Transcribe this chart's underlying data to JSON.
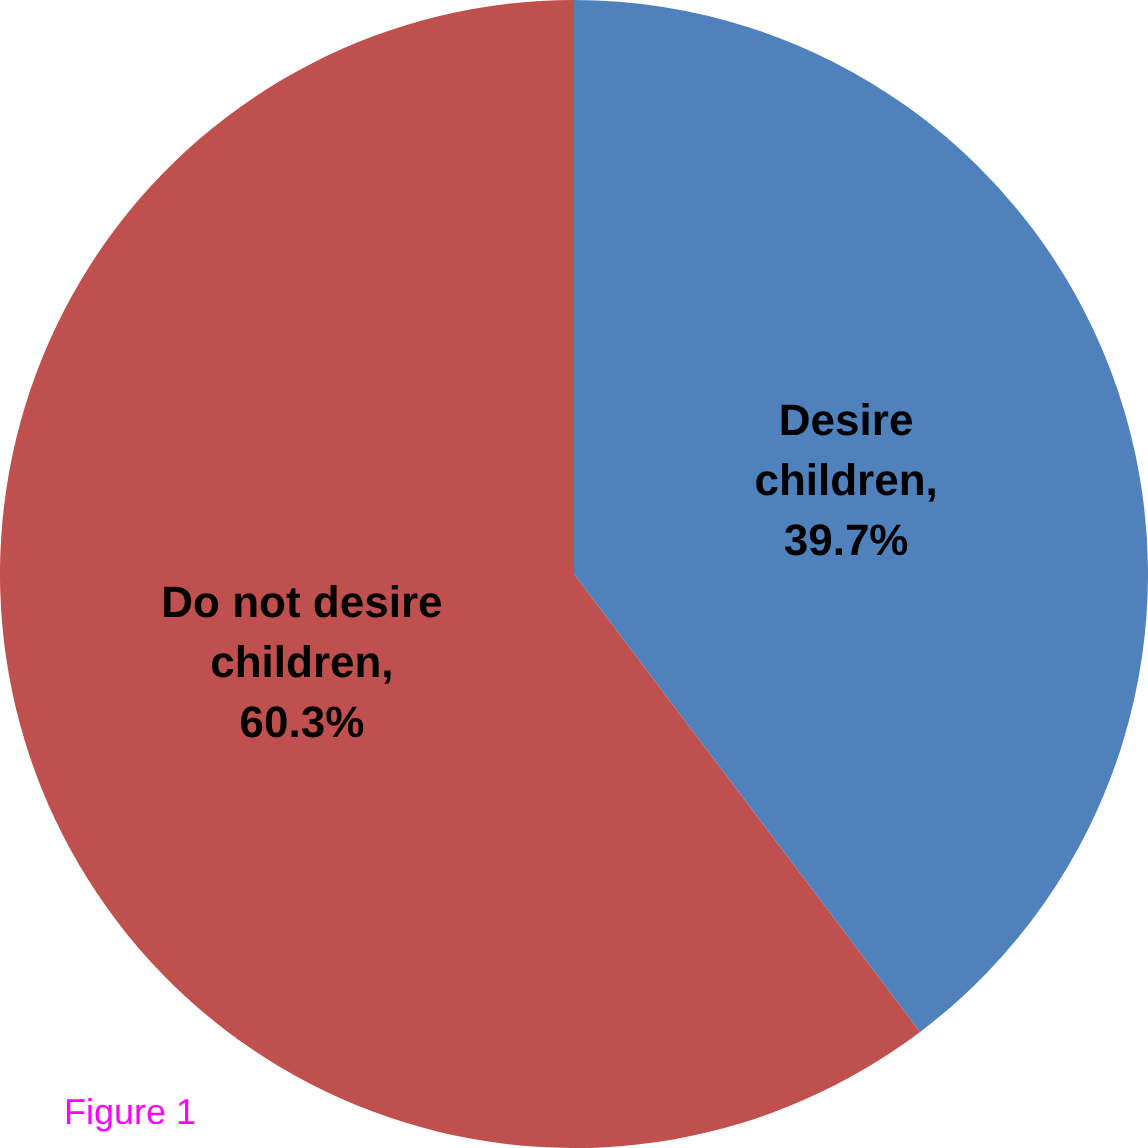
{
  "chart_data": {
    "type": "pie",
    "categories": [
      "Desire children",
      "Do not desire children"
    ],
    "values": [
      39.7,
      60.3
    ],
    "colors": [
      "#4f81bd",
      "#c0504d"
    ],
    "value_labels": [
      ", 39.7%",
      ", 60.3%"
    ],
    "legend": false,
    "annotations": [
      "Figure 1"
    ]
  }
}
